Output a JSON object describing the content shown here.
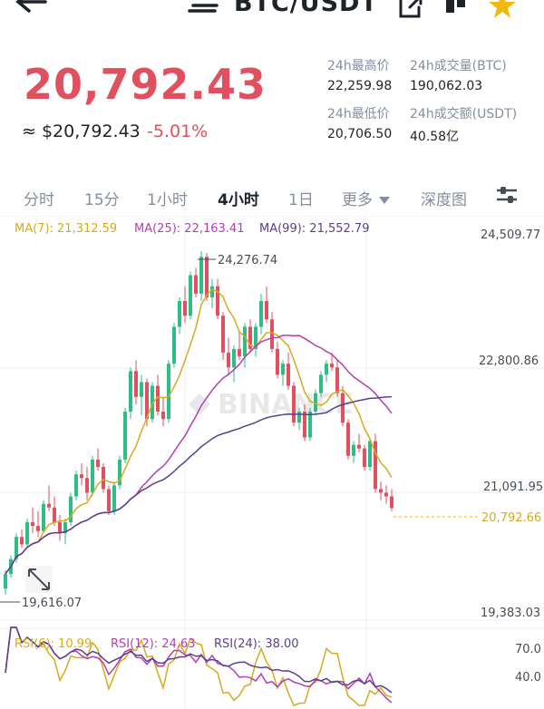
{
  "header": {
    "pair": "BTC/USDT",
    "icons": [
      "back-arrow-icon",
      "swap-icon",
      "share-icon",
      "bookmark-icon",
      "star-icon"
    ]
  },
  "price": {
    "last": "20,792.43",
    "approx": "≈ $20,792.43",
    "change": "-5.01%",
    "color_down": "#e0505e"
  },
  "stats": {
    "high_label": "24h最高价",
    "high_value": "22,259.98",
    "low_label": "24h最低价",
    "low_value": "20,706.50",
    "vol_btc_label": "24h成交量(BTC)",
    "vol_btc_value": "190,062.03",
    "vol_usdt_label": "24h成交额(USDT)",
    "vol_usdt_value": "40.58亿"
  },
  "tabs": [
    {
      "label": "分时"
    },
    {
      "label": "15分"
    },
    {
      "label": "1小时"
    },
    {
      "label": "4小时",
      "active": true
    },
    {
      "label": "1日"
    },
    {
      "label": "更多"
    },
    {
      "label": "深度图"
    }
  ],
  "legend": {
    "ma7": "MA(7): 21,312.59",
    "ma25": "MA(25): 22,163.41",
    "ma99": "MA(99): 21,552.79",
    "rsi6": "RSI(6): 10.99",
    "rsi12": "RSI(12): 24.63",
    "rsi24": "RSI(24): 38.00",
    "colors": {
      "ma7": "#d7a91e",
      "ma25": "#b43fb0",
      "ma99": "#5b3f8e",
      "up": "#2ebd85",
      "down": "#e0505e"
    }
  },
  "chart_data": {
    "type": "candlestick",
    "y_ticks": [
      "24,509.77",
      "22,800.86",
      "21,091.95",
      "19,383.03"
    ],
    "ylim": [
      19383.03,
      24509.77
    ],
    "current_price": "20,792.66",
    "high_marker": "24,276.74",
    "low_marker": "19,616.07",
    "candles": [
      [
        19700,
        19950,
        19620,
        19900
      ],
      [
        19900,
        20150,
        19850,
        20100
      ],
      [
        20100,
        20450,
        20050,
        20400
      ],
      [
        20400,
        20500,
        20250,
        20300
      ],
      [
        20300,
        20650,
        20250,
        20600
      ],
      [
        20600,
        20800,
        20450,
        20550
      ],
      [
        20550,
        20750,
        20400,
        20480
      ],
      [
        20480,
        20900,
        20450,
        20850
      ],
      [
        20850,
        21100,
        20750,
        20800
      ],
      [
        20800,
        20950,
        20550,
        20600
      ],
      [
        20600,
        20700,
        20350,
        20450
      ],
      [
        20450,
        20650,
        20300,
        20600
      ],
      [
        20600,
        21000,
        20550,
        20950
      ],
      [
        20950,
        21300,
        20900,
        21250
      ],
      [
        21250,
        21400,
        21100,
        21200
      ],
      [
        21200,
        21350,
        20900,
        21000
      ],
      [
        21000,
        21500,
        20950,
        21450
      ],
      [
        21450,
        21600,
        21300,
        21350
      ],
      [
        21350,
        21400,
        21000,
        21050
      ],
      [
        21050,
        21100,
        20700,
        20750
      ],
      [
        20750,
        21150,
        20700,
        21100
      ],
      [
        21100,
        21500,
        21050,
        21450
      ],
      [
        21450,
        22150,
        21400,
        22100
      ],
      [
        22100,
        22700,
        22000,
        22650
      ],
      [
        22650,
        22800,
        22200,
        22300
      ],
      [
        22300,
        22600,
        22050,
        22500
      ],
      [
        22500,
        22550,
        21900,
        22000
      ],
      [
        22000,
        22500,
        21950,
        22450
      ],
      [
        22450,
        22600,
        22050,
        22100
      ],
      [
        22100,
        22300,
        21900,
        22000
      ],
      [
        22000,
        22800,
        21950,
        22750
      ],
      [
        22750,
        23300,
        22700,
        23250
      ],
      [
        23250,
        23650,
        23150,
        23600
      ],
      [
        23600,
        23800,
        23300,
        23400
      ],
      [
        23400,
        24000,
        23350,
        23950
      ],
      [
        23950,
        24050,
        23650,
        23700
      ],
      [
        23700,
        24276.74,
        23600,
        24200
      ],
      [
        24200,
        24250,
        23600,
        23650
      ],
      [
        23650,
        23900,
        23500,
        23800
      ],
      [
        23800,
        23900,
        23350,
        23400
      ],
      [
        23400,
        23450,
        22800,
        22900
      ],
      [
        22900,
        23100,
        22600,
        22700
      ],
      [
        22700,
        23000,
        22500,
        22950
      ],
      [
        22950,
        23200,
        22800,
        22850
      ],
      [
        22850,
        23300,
        22700,
        23250
      ],
      [
        23250,
        23350,
        22900,
        22950
      ],
      [
        22950,
        23300,
        22850,
        23250
      ],
      [
        23250,
        23700,
        23150,
        23600
      ],
      [
        23600,
        23800,
        23300,
        23350
      ],
      [
        23350,
        23450,
        22900,
        22950
      ],
      [
        22950,
        23050,
        22550,
        22600
      ],
      [
        22600,
        22800,
        22450,
        22750
      ],
      [
        22750,
        22900,
        22400,
        22450
      ],
      [
        22450,
        22500,
        21900,
        21950
      ],
      [
        21950,
        22150,
        21850,
        22100
      ],
      [
        22100,
        22200,
        21700,
        21750
      ],
      [
        21750,
        22150,
        21700,
        22100
      ],
      [
        22100,
        22400,
        22050,
        22350
      ],
      [
        22350,
        22650,
        22300,
        22600
      ],
      [
        22600,
        22800,
        22500,
        22750
      ],
      [
        22750,
        22900,
        22650,
        22700
      ],
      [
        22700,
        22800,
        22300,
        22350
      ],
      [
        22350,
        22450,
        21900,
        21950
      ],
      [
        21950,
        22000,
        21450,
        21500
      ],
      [
        21500,
        21700,
        21400,
        21650
      ],
      [
        21650,
        21800,
        21550,
        21600
      ],
      [
        21600,
        21650,
        21300,
        21350
      ],
      [
        21350,
        21750,
        21300,
        21700
      ],
      [
        21700,
        21800,
        21000,
        21050
      ],
      [
        21050,
        21150,
        20900,
        21000
      ],
      [
        21000,
        21100,
        20850,
        20950
      ],
      [
        20950,
        21050,
        20750,
        20792.43
      ]
    ]
  }
}
